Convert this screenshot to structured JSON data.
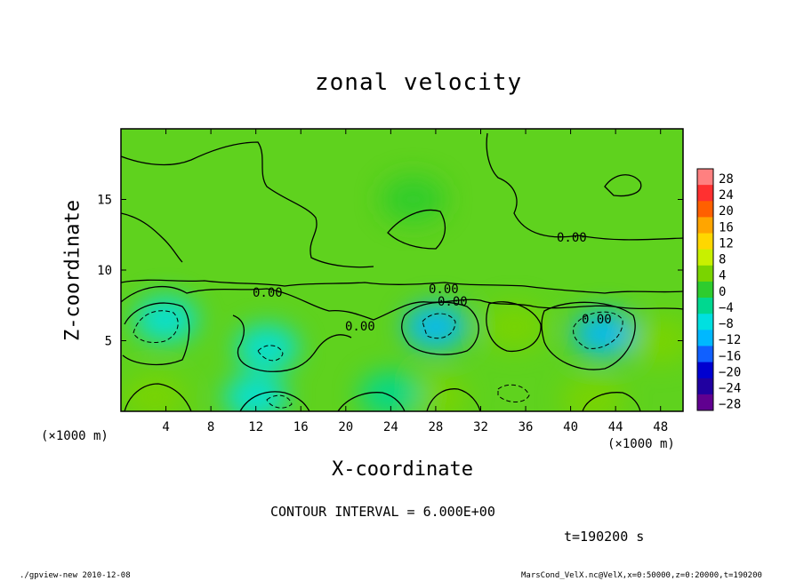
{
  "chart_data": {
    "type": "heatmap",
    "title": "zonal velocity",
    "xlabel": "X-coordinate",
    "ylabel": "Z-coordinate",
    "x_unit": "(×1000 m)",
    "y_unit": "(×1000 m)",
    "xlim": [
      0,
      50
    ],
    "ylim": [
      0,
      20
    ],
    "x_ticks": [
      4,
      8,
      12,
      16,
      20,
      24,
      28,
      32,
      36,
      40,
      44,
      48
    ],
    "y_ticks": [
      5,
      10,
      15
    ],
    "colorbar": {
      "levels": [
        28,
        24,
        20,
        16,
        12,
        8,
        4,
        0,
        -4,
        -8,
        -12,
        -16,
        -20,
        -24,
        -28
      ],
      "labels": [
        "28",
        "24",
        "20",
        "16",
        "12",
        "8",
        "4",
        "0",
        "−4",
        "−8",
        "−12",
        "−16",
        "−20",
        "−24",
        "−28"
      ],
      "colors": [
        "#ff8080",
        "#ff3030",
        "#ff6000",
        "#ffa500",
        "#ffd700",
        "#c8f000",
        "#7ad400",
        "#2ecc2e",
        "#00d890",
        "#00e0e0",
        "#00b8ff",
        "#1060ff",
        "#0000d0",
        "#2000a0",
        "#600090"
      ]
    },
    "contour_label": "0.00",
    "contour_interval_text": "CONTOUR INTERVAL = 6.000E+00",
    "time_text": "t=190200 s",
    "features": [
      {
        "x": 4,
        "z": 6.5,
        "value": -8
      },
      {
        "x": 13,
        "z": 4.5,
        "value": -6
      },
      {
        "x": 28,
        "z": 6.0,
        "value": -10
      },
      {
        "x": 35,
        "z": 6.0,
        "value": 6
      },
      {
        "x": 43,
        "z": 5.5,
        "value": -12
      },
      {
        "x": 3,
        "z": 1.0,
        "value": 5
      },
      {
        "x": 28,
        "z": 1.0,
        "value": 5
      },
      {
        "x": 42,
        "z": 0.8,
        "value": 6
      },
      {
        "x": 12,
        "z": 1.0,
        "value": -6
      },
      {
        "x": 24,
        "z": 1.2,
        "value": -4
      },
      {
        "x": 48,
        "z": 5.0,
        "value": 4
      },
      {
        "x": 26,
        "z": 15.0,
        "value": 2
      }
    ]
  },
  "footer": {
    "left": "./gpview-new  2010-12-08",
    "right": "MarsCond_VelX.nc@VelX,x=0:50000,z=0:20000,t=190200"
  }
}
